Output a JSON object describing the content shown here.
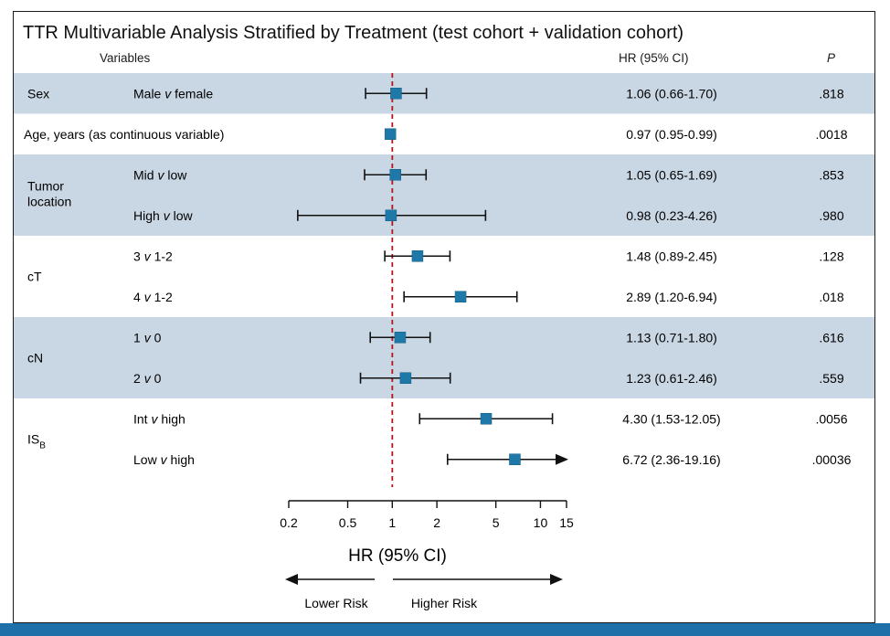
{
  "title": "TTR Multivariable Analysis Stratified by Treatment (test cohort + validation cohort)",
  "headers": {
    "variables": "Variables",
    "hr": "HR (95% CI)",
    "p": "P"
  },
  "groups": [
    {
      "label": "Sex",
      "shaded": true,
      "rows": 1
    },
    {
      "label": "",
      "shaded": false,
      "rows": 1
    },
    {
      "label": "Tumor location",
      "shaded": true,
      "rows": 2
    },
    {
      "label": "cT",
      "shaded": false,
      "rows": 2
    },
    {
      "label": "cN",
      "shaded": true,
      "rows": 2
    },
    {
      "label": "IS_B",
      "shaded": false,
      "rows": 2
    }
  ],
  "colors": {
    "shade": "#c9d6e3",
    "marker": "#1f79a8",
    "refline": "#b4151b",
    "line": "#111111",
    "bar": "#1f6fa8"
  },
  "chart_data": {
    "type": "forest",
    "xlabel": "HR (95% CI)",
    "xscale": "log",
    "xlim": [
      0.2,
      15
    ],
    "xticks": [
      0.2,
      0.5,
      1,
      2,
      5,
      10,
      15
    ],
    "tick_labels": [
      "0.2",
      "0.5",
      "1",
      "2",
      "5",
      "10",
      "15"
    ],
    "reference": 1,
    "direction_labels": {
      "left": "Lower Risk",
      "right": "Higher Risk"
    },
    "rows": [
      {
        "group": "Sex",
        "label_prefix": "Male ",
        "label_italic": "v",
        "label_suffix": " female",
        "hr": 1.06,
        "lo": 0.66,
        "hi": 1.7,
        "hr_text": "1.06 (0.66-1.70)",
        "p": ".818",
        "arrow": false
      },
      {
        "group": "",
        "label_prefix": "Age, years (as continuous variable)",
        "label_italic": "",
        "label_suffix": "",
        "hr": 0.97,
        "lo": 0.95,
        "hi": 0.99,
        "hr_text": "0.97 (0.95-0.99)",
        "p": ".0018",
        "arrow": false
      },
      {
        "group": "Tumor location",
        "label_prefix": "Mid ",
        "label_italic": "v",
        "label_suffix": " low",
        "hr": 1.05,
        "lo": 0.65,
        "hi": 1.69,
        "hr_text": "1.05 (0.65-1.69)",
        "p": ".853",
        "arrow": false
      },
      {
        "group": "Tumor location",
        "label_prefix": "High ",
        "label_italic": "v",
        "label_suffix": " low",
        "hr": 0.98,
        "lo": 0.23,
        "hi": 4.26,
        "hr_text": "0.98 (0.23-4.26)",
        "p": ".980",
        "arrow": false
      },
      {
        "group": "cT",
        "label_prefix": "3 ",
        "label_italic": "v",
        "label_suffix": " 1-2",
        "hr": 1.48,
        "lo": 0.89,
        "hi": 2.45,
        "hr_text": "1.48 (0.89-2.45)",
        "p": ".128",
        "arrow": false
      },
      {
        "group": "cT",
        "label_prefix": "4 ",
        "label_italic": "v",
        "label_suffix": " 1-2",
        "hr": 2.89,
        "lo": 1.2,
        "hi": 6.94,
        "hr_text": "2.89 (1.20-6.94)",
        "p": ".018",
        "arrow": false
      },
      {
        "group": "cN",
        "label_prefix": "1 ",
        "label_italic": "v",
        "label_suffix": " 0",
        "hr": 1.13,
        "lo": 0.71,
        "hi": 1.8,
        "hr_text": "1.13 (0.71-1.80)",
        "p": ".616",
        "arrow": false
      },
      {
        "group": "cN",
        "label_prefix": "2 ",
        "label_italic": "v",
        "label_suffix": " 0",
        "hr": 1.23,
        "lo": 0.61,
        "hi": 2.46,
        "hr_text": "1.23 (0.61-2.46)",
        "p": ".559",
        "arrow": false
      },
      {
        "group": "IS_B",
        "label_prefix": "Int ",
        "label_italic": "v",
        "label_suffix": " high",
        "hr": 4.3,
        "lo": 1.53,
        "hi": 12.05,
        "hr_text": "4.30 (1.53-12.05)",
        "p": ".0056",
        "arrow": false
      },
      {
        "group": "IS_B",
        "label_prefix": "Low ",
        "label_italic": "v",
        "label_suffix": " high",
        "hr": 6.72,
        "lo": 2.36,
        "hi": 19.16,
        "hr_text": "6.72 (2.36-19.16)",
        "p": ".00036",
        "arrow": true
      }
    ]
  }
}
